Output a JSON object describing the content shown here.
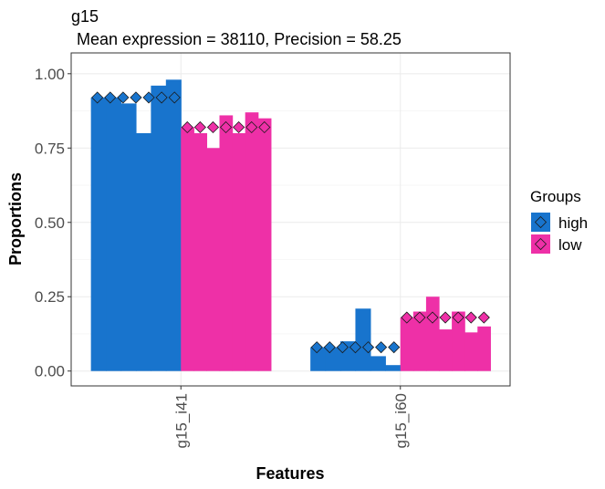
{
  "chart_data": {
    "type": "bar",
    "title": "g15",
    "subtitle": "Mean expression = 38110, Precision = 58.25",
    "xlabel": "Features",
    "ylabel": "Proportions",
    "ylim": [
      -0.05,
      1.07
    ],
    "yticks": [
      0.0,
      0.25,
      0.5,
      0.75,
      1.0
    ],
    "ytick_labels": [
      "0.00",
      "0.25",
      "0.50",
      "0.75",
      "1.00"
    ],
    "grid": true,
    "legend": {
      "title": "Groups",
      "position": "right",
      "items": [
        "high",
        "low"
      ]
    },
    "categories": [
      "g15_i41",
      "g15_i60"
    ],
    "series": [
      {
        "name": "high",
        "color": "#1874cd",
        "samples": [
          [
            0.92,
            0.92,
            0.9,
            0.8,
            0.96,
            0.98
          ],
          [
            0.08,
            0.08,
            0.1,
            0.21,
            0.05,
            0.02
          ]
        ],
        "markers": [
          [
            0.92,
            0.92,
            0.92,
            0.92,
            0.92,
            0.92,
            0.92
          ],
          [
            0.08,
            0.08,
            0.08,
            0.08,
            0.08,
            0.08,
            0.08
          ]
        ]
      },
      {
        "name": "low",
        "color": "#ee30a7",
        "samples": [
          [
            0.82,
            0.8,
            0.75,
            0.86,
            0.8,
            0.87,
            0.85
          ],
          [
            0.18,
            0.2,
            0.25,
            0.14,
            0.2,
            0.13,
            0.15
          ]
        ],
        "markers": [
          [
            0.82,
            0.82,
            0.82,
            0.82,
            0.82,
            0.82,
            0.82
          ],
          [
            0.18,
            0.18,
            0.18,
            0.18,
            0.18,
            0.18,
            0.18
          ]
        ]
      }
    ]
  }
}
